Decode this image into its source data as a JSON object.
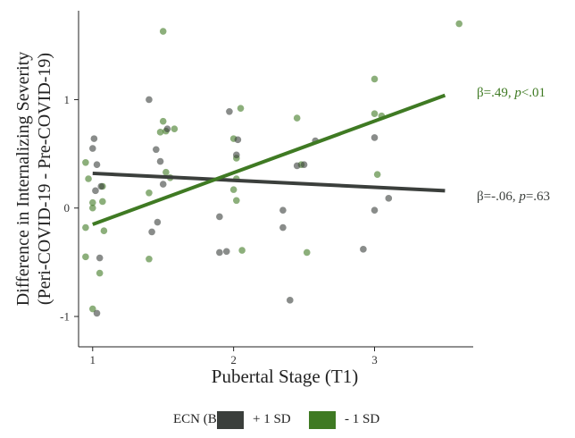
{
  "chart_data": {
    "type": "scatter",
    "title": "",
    "xlabel": "Pubertal Stage (T1)",
    "ylabel_line1": "Difference in Internalizing Severity",
    "ylabel_line2": "(Peri-COVID-19 - Pre-COVID-19)",
    "xlim": [
      0.9,
      3.7
    ],
    "ylim": [
      -1.28,
      1.82
    ],
    "x_ticks": [
      1,
      2,
      3
    ],
    "y_ticks": [
      -1,
      0,
      1
    ],
    "grid": false,
    "legend": {
      "position": "bottom",
      "title": "ECN (B)",
      "entries": [
        "+ 1 SD",
        "- 1 SD"
      ]
    },
    "colors": {
      "plus_1sd": "#3b3f3c",
      "minus_1sd": "#3f7a23"
    },
    "series": [
      {
        "name": "+ 1 SD",
        "color": "#3b3f3c",
        "points": [
          [
            1.0,
            0.55
          ],
          [
            1.01,
            0.64
          ],
          [
            1.03,
            0.4
          ],
          [
            1.02,
            0.16
          ],
          [
            1.06,
            0.2
          ],
          [
            1.05,
            -0.46
          ],
          [
            1.03,
            -0.97
          ],
          [
            1.4,
            1.0
          ],
          [
            1.45,
            0.54
          ],
          [
            1.48,
            0.43
          ],
          [
            1.5,
            0.22
          ],
          [
            1.53,
            0.73
          ],
          [
            1.42,
            -0.22
          ],
          [
            1.46,
            -0.13
          ],
          [
            1.97,
            0.89
          ],
          [
            1.9,
            -0.08
          ],
          [
            1.95,
            -0.4
          ],
          [
            1.9,
            -0.41
          ],
          [
            2.02,
            0.49
          ],
          [
            2.03,
            0.63
          ],
          [
            2.35,
            -0.02
          ],
          [
            2.35,
            -0.18
          ],
          [
            2.4,
            -0.85
          ],
          [
            2.45,
            0.39
          ],
          [
            2.5,
            0.4
          ],
          [
            2.58,
            0.62
          ],
          [
            2.92,
            -0.38
          ],
          [
            3.0,
            0.65
          ],
          [
            3.0,
            -0.02
          ],
          [
            3.1,
            0.09
          ]
        ],
        "fit": {
          "x": [
            1.0,
            3.5
          ],
          "y": [
            0.32,
            0.16
          ]
        }
      },
      {
        "name": "- 1 SD",
        "color": "#3f7a23",
        "points": [
          [
            0.95,
            0.42
          ],
          [
            0.97,
            0.27
          ],
          [
            1.0,
            0.05
          ],
          [
            1.0,
            -0.0
          ],
          [
            0.95,
            -0.18
          ],
          [
            0.95,
            -0.45
          ],
          [
            1.0,
            -0.93
          ],
          [
            1.07,
            0.2
          ],
          [
            1.07,
            0.06
          ],
          [
            1.08,
            -0.21
          ],
          [
            1.05,
            -0.6
          ],
          [
            1.5,
            1.63
          ],
          [
            1.5,
            0.8
          ],
          [
            1.48,
            0.7
          ],
          [
            1.52,
            0.71
          ],
          [
            1.52,
            0.33
          ],
          [
            1.4,
            0.14
          ],
          [
            1.4,
            -0.47
          ],
          [
            1.55,
            0.28
          ],
          [
            1.58,
            0.73
          ],
          [
            2.02,
            0.27
          ],
          [
            2.02,
            0.46
          ],
          [
            2.0,
            0.64
          ],
          [
            2.05,
            0.92
          ],
          [
            2.0,
            0.17
          ],
          [
            2.02,
            0.07
          ],
          [
            2.06,
            -0.39
          ],
          [
            2.45,
            0.83
          ],
          [
            2.48,
            0.4
          ],
          [
            2.52,
            -0.41
          ],
          [
            3.0,
            1.19
          ],
          [
            3.0,
            0.87
          ],
          [
            3.05,
            0.85
          ],
          [
            3.02,
            0.31
          ],
          [
            3.6,
            1.7
          ]
        ],
        "fit": {
          "x": [
            1.0,
            3.5
          ],
          "y": [
            -0.15,
            1.04
          ]
        }
      }
    ],
    "annotations": [
      {
        "series": "- 1 SD",
        "beta": "β=.49, ",
        "p": "p",
        "p_rest": "<.01",
        "color": "#3f7a23"
      },
      {
        "series": "+ 1 SD",
        "beta": "β=-.06, ",
        "p": "p",
        "p_rest": "=.63",
        "color": "#3b3f3c"
      }
    ]
  }
}
